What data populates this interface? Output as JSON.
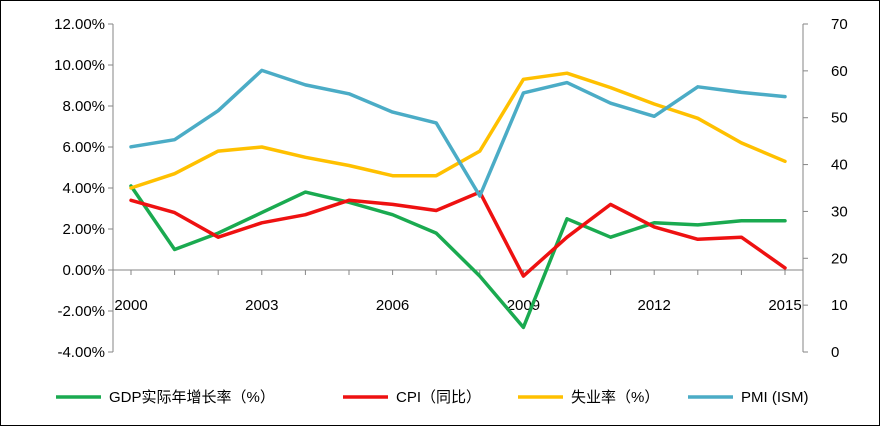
{
  "chart_data": {
    "type": "line",
    "title": "",
    "x": [
      2000,
      2001,
      2002,
      2003,
      2004,
      2005,
      2006,
      2007,
      2008,
      2009,
      2010,
      2011,
      2012,
      2013,
      2014,
      2015
    ],
    "x_tick_labels": [
      "2000",
      "2003",
      "2006",
      "2009",
      "2012",
      "2015"
    ],
    "x_tick_values": [
      2000,
      2003,
      2006,
      2009,
      2012,
      2015
    ],
    "y_left": {
      "min": -4,
      "max": 12,
      "step": 2,
      "tick_labels": [
        "-4.00%",
        "-2.00%",
        "0.00%",
        "2.00%",
        "4.00%",
        "6.00%",
        "8.00%",
        "10.00%",
        "12.00%"
      ]
    },
    "y_right": {
      "min": 0,
      "max": 70,
      "step": 10,
      "tick_labels": [
        "0",
        "10",
        "20",
        "30",
        "40",
        "50",
        "60",
        "70"
      ]
    },
    "grid": false,
    "legend_position": "bottom",
    "series": [
      {
        "name": "GDP实际年增长率（%）",
        "axis": "left",
        "color": "#1aaa50",
        "values": [
          4.1,
          1.0,
          1.8,
          2.8,
          3.8,
          3.3,
          2.7,
          1.8,
          -0.3,
          -2.8,
          2.5,
          1.6,
          2.3,
          2.2,
          2.4,
          2.4
        ]
      },
      {
        "name": "CPI（同比）",
        "axis": "left",
        "color": "#ee1111",
        "values": [
          3.4,
          2.8,
          1.6,
          2.3,
          2.7,
          3.4,
          3.2,
          2.9,
          3.8,
          -0.3,
          1.6,
          3.2,
          2.1,
          1.5,
          1.6,
          0.1
        ]
      },
      {
        "name": "失业率（%）",
        "axis": "left",
        "color": "#ffc000",
        "values": [
          4.0,
          4.7,
          5.8,
          6.0,
          5.5,
          5.1,
          4.6,
          4.6,
          5.8,
          9.3,
          9.6,
          8.9,
          8.1,
          7.4,
          6.2,
          5.3
        ]
      },
      {
        "name": "PMI (ISM)",
        "axis": "right",
        "color": "#4bacc6",
        "values": [
          43.8,
          45.3,
          51.5,
          60.1,
          57.0,
          55.1,
          51.2,
          48.9,
          33.3,
          55.3,
          57.5,
          53.1,
          50.3,
          56.6,
          55.4,
          54.5
        ]
      }
    ]
  }
}
